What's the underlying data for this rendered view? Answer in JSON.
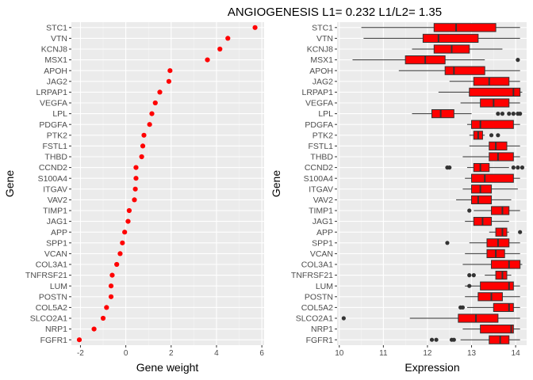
{
  "title": "ANGIOGENESIS L1= 0.232 L1/L2= 1.35",
  "colors": {
    "panel_bg": "#EBEBEB",
    "grid_major": "#FFFFFF",
    "point": "#FF0000",
    "box_fill": "#FF0000",
    "outline": "#333333",
    "tick_text": "#4D4D4D"
  },
  "chart_data": [
    {
      "type": "scatter",
      "xlabel": "Gene weight",
      "ylabel": "Gene",
      "xlim": [
        -2.4,
        6.1
      ],
      "xticks": [
        -2,
        0,
        2,
        4,
        6
      ],
      "grid": true,
      "categories": [
        "STC1",
        "VTN",
        "KCNJ8",
        "MSX1",
        "APOH",
        "JAG2",
        "LRPAP1",
        "VEGFA",
        "LPL",
        "PDGFA",
        "PTK2",
        "FSTL1",
        "THBD",
        "CCND2",
        "S100A4",
        "ITGAV",
        "VAV2",
        "TIMP1",
        "JAG1",
        "APP",
        "SPP1",
        "VCAN",
        "COL3A1",
        "TNFRSF21",
        "LUM",
        "POSTN",
        "COL5A2",
        "SLCO2A1",
        "NRP1",
        "FGFR1"
      ],
      "values": [
        5.7,
        4.5,
        4.15,
        3.6,
        1.95,
        1.9,
        1.5,
        1.3,
        1.15,
        1.05,
        0.8,
        0.75,
        0.7,
        0.45,
        0.45,
        0.42,
        0.38,
        0.15,
        0.1,
        -0.05,
        -0.15,
        -0.25,
        -0.4,
        -0.6,
        -0.65,
        -0.65,
        -0.85,
        -1.0,
        -1.4,
        -2.05
      ]
    },
    {
      "type": "box",
      "xlabel": "Expression",
      "ylabel": "Gene",
      "xlim": [
        9.95,
        14.25
      ],
      "xticks": [
        10,
        11,
        12,
        13,
        14
      ],
      "grid": true,
      "categories": [
        "STC1",
        "VTN",
        "KCNJ8",
        "MSX1",
        "APOH",
        "JAG2",
        "LRPAP1",
        "VEGFA",
        "LPL",
        "PDGFA",
        "PTK2",
        "FSTL1",
        "THBD",
        "CCND2",
        "S100A4",
        "ITGAV",
        "VAV2",
        "TIMP1",
        "JAG1",
        "APP",
        "SPP1",
        "VCAN",
        "COL3A1",
        "TNFRSF21",
        "LUM",
        "POSTN",
        "COL5A2",
        "SLCO2A1",
        "NRP1",
        "FGFR1"
      ],
      "boxes": [
        {
          "gene": "STC1",
          "min": 10.5,
          "q1": 12.15,
          "median": 12.65,
          "q3": 13.55,
          "max": 14.1,
          "outliers": []
        },
        {
          "gene": "VTN",
          "min": 10.55,
          "q1": 11.9,
          "median": 12.25,
          "q3": 13.15,
          "max": 14.1,
          "outliers": []
        },
        {
          "gene": "KCNJ8",
          "min": 11.65,
          "q1": 12.15,
          "median": 12.55,
          "q3": 12.95,
          "max": 13.7,
          "outliers": []
        },
        {
          "gene": "MSX1",
          "min": 10.3,
          "q1": 11.5,
          "median": 11.95,
          "q3": 12.4,
          "max": 13.3,
          "outliers": [
            14.05
          ]
        },
        {
          "gene": "APOH",
          "min": 11.35,
          "q1": 12.4,
          "median": 12.6,
          "q3": 13.3,
          "max": 14.1,
          "outliers": []
        },
        {
          "gene": "JAG2",
          "min": 12.5,
          "q1": 13.05,
          "median": 13.4,
          "q3": 13.85,
          "max": 14.1,
          "outliers": []
        },
        {
          "gene": "LRPAP1",
          "min": 12.25,
          "q1": 12.95,
          "median": 13.95,
          "q3": 14.1,
          "max": 14.15,
          "outliers": []
        },
        {
          "gene": "VEGFA",
          "min": 12.75,
          "q1": 13.2,
          "median": 13.5,
          "q3": 13.85,
          "max": 14.1,
          "outliers": []
        },
        {
          "gene": "LPL",
          "min": 11.65,
          "q1": 12.1,
          "median": 12.3,
          "q3": 12.6,
          "max": 13.0,
          "outliers": [
            13.6,
            13.7,
            13.85,
            13.95,
            14.05,
            14.1
          ]
        },
        {
          "gene": "PDGFA",
          "min": 12.9,
          "q1": 13.0,
          "median": 13.2,
          "q3": 13.95,
          "max": 14.1,
          "outliers": []
        },
        {
          "gene": "PTK2",
          "min": 12.95,
          "q1": 13.05,
          "median": 13.15,
          "q3": 13.25,
          "max": 13.3,
          "outliers": [
            13.45,
            13.6
          ]
        },
        {
          "gene": "FSTL1",
          "min": 12.95,
          "q1": 13.4,
          "median": 13.55,
          "q3": 13.8,
          "max": 14.1,
          "outliers": []
        },
        {
          "gene": "THBD",
          "min": 12.8,
          "q1": 13.4,
          "median": 13.6,
          "q3": 13.95,
          "max": 14.1,
          "outliers": []
        },
        {
          "gene": "CCND2",
          "min": 12.9,
          "q1": 13.05,
          "median": 13.2,
          "q3": 13.4,
          "max": 13.85,
          "outliers": [
            12.45,
            12.5,
            13.95,
            14.05,
            14.15
          ]
        },
        {
          "gene": "S100A4",
          "min": 12.85,
          "q1": 13.0,
          "median": 13.3,
          "q3": 13.95,
          "max": 14.1,
          "outliers": []
        },
        {
          "gene": "ITGAV",
          "min": 12.8,
          "q1": 13.0,
          "median": 13.2,
          "q3": 13.45,
          "max": 14.05,
          "outliers": []
        },
        {
          "gene": "VAV2",
          "min": 12.65,
          "q1": 13.0,
          "median": 13.15,
          "q3": 13.45,
          "max": 13.9,
          "outliers": []
        },
        {
          "gene": "TIMP1",
          "min": 13.05,
          "q1": 13.45,
          "median": 13.7,
          "q3": 13.85,
          "max": 14.1,
          "outliers": [
            12.95
          ]
        },
        {
          "gene": "JAG1",
          "min": 12.85,
          "q1": 13.05,
          "median": 13.25,
          "q3": 13.45,
          "max": 13.85,
          "outliers": []
        },
        {
          "gene": "APP",
          "min": 13.4,
          "q1": 13.55,
          "median": 13.7,
          "q3": 13.8,
          "max": 13.85,
          "outliers": [
            14.1
          ]
        },
        {
          "gene": "SPP1",
          "min": 12.95,
          "q1": 13.35,
          "median": 13.6,
          "q3": 13.85,
          "max": 14.1,
          "outliers": [
            12.45
          ]
        },
        {
          "gene": "VCAN",
          "min": 12.85,
          "q1": 13.35,
          "median": 13.55,
          "q3": 13.75,
          "max": 14.1,
          "outliers": []
        },
        {
          "gene": "COL3A1",
          "min": 12.8,
          "q1": 13.45,
          "median": 13.85,
          "q3": 14.1,
          "max": 14.15,
          "outliers": []
        },
        {
          "gene": "TNFRSF21",
          "min": 13.3,
          "q1": 13.55,
          "median": 13.7,
          "q3": 13.8,
          "max": 13.9,
          "outliers": [
            12.95,
            13.05
          ]
        },
        {
          "gene": "LUM",
          "min": 12.85,
          "q1": 13.2,
          "median": 13.85,
          "q3": 13.95,
          "max": 14.1,
          "outliers": [
            12.95
          ]
        },
        {
          "gene": "POSTN",
          "min": 12.85,
          "q1": 13.15,
          "median": 13.45,
          "q3": 13.7,
          "max": 14.1,
          "outliers": []
        },
        {
          "gene": "COL5A2",
          "min": 12.9,
          "q1": 13.5,
          "median": 13.85,
          "q3": 13.95,
          "max": 14.1,
          "outliers": [
            12.75,
            12.8
          ]
        },
        {
          "gene": "SLCO2A1",
          "min": 11.6,
          "q1": 12.7,
          "median": 13.1,
          "q3": 13.6,
          "max": 14.1,
          "outliers": [
            10.1
          ]
        },
        {
          "gene": "NRP1",
          "min": 12.8,
          "q1": 13.2,
          "median": 13.9,
          "q3": 13.95,
          "max": 14.1,
          "outliers": []
        },
        {
          "gene": "FGFR1",
          "min": 12.75,
          "q1": 13.4,
          "median": 13.65,
          "q3": 13.85,
          "max": 14.1,
          "outliers": [
            12.1,
            12.2,
            12.55,
            12.6
          ]
        }
      ]
    }
  ]
}
